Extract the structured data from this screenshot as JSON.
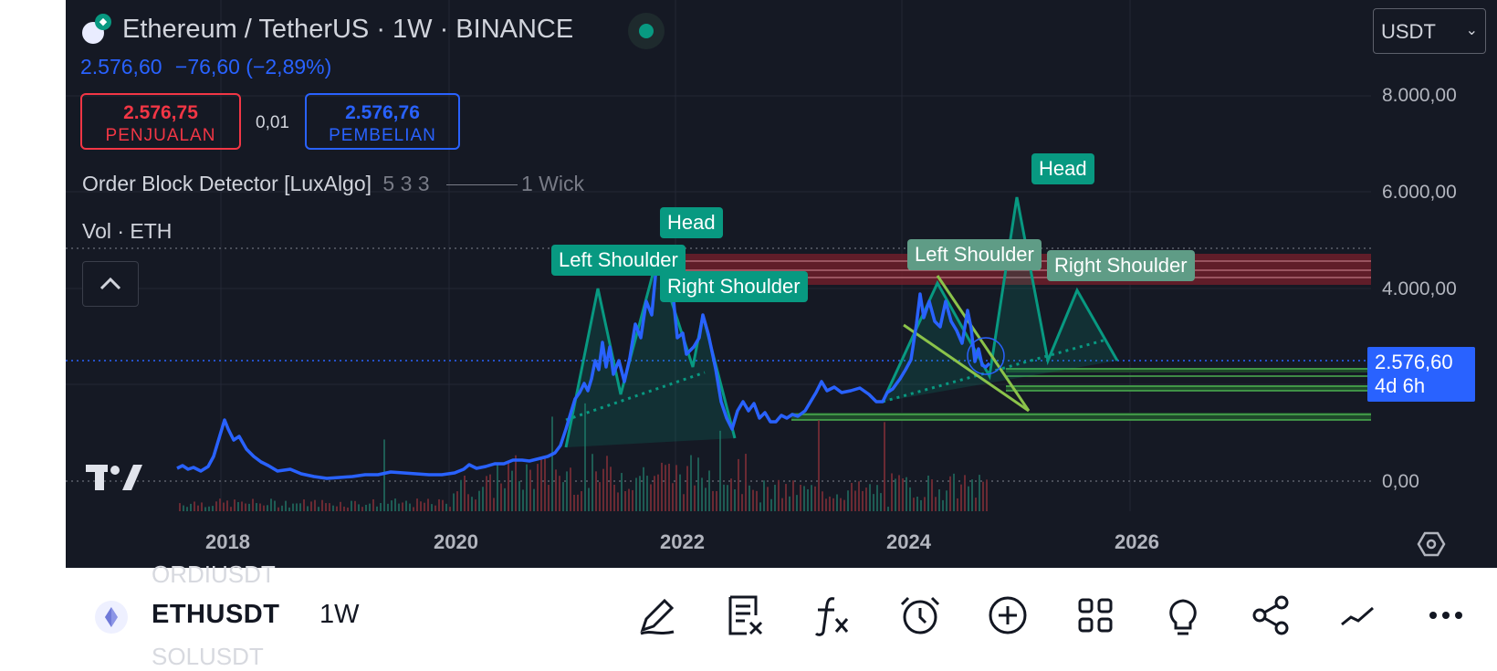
{
  "header": {
    "symbol_title": "Ethereum / TetherUS · 1W · BINANCE",
    "last_price": "2.576,60",
    "change": "−76,60 (−2,89%)"
  },
  "trade": {
    "sell_price": "2.576,75",
    "sell_label": "PENJUALAN",
    "spread": "0,01",
    "buy_price": "2.576,76",
    "buy_label": "PEMBELIAN"
  },
  "indicators": {
    "order_block_name": "Order Block Detector [LuxAlgo]",
    "order_block_params": "5 3 3",
    "order_block_wick": "1 Wick",
    "volume": "Vol · ETH"
  },
  "currency": {
    "selected": "USDT"
  },
  "price_tag": {
    "value": "2.576,60",
    "countdown": "4d 6h"
  },
  "y_axis": {
    "labels": [
      "8.000,00",
      "6.000,00",
      "4.000,00",
      "0,00"
    ]
  },
  "x_axis": {
    "labels": [
      "2018",
      "2020",
      "2022",
      "2024",
      "2026"
    ]
  },
  "patterns": {
    "p1_left": "Left Shoulder",
    "p1_head": "Head",
    "p1_right": "Right Shoulder",
    "p2_left": "Left Shoulder",
    "p2_head": "Head",
    "p2_right": "Right Shoulder"
  },
  "bottom_bar": {
    "symbol": "ETHUSDT",
    "interval": "1W",
    "ghost_above": "ORDIUSDT",
    "ghost_below": "SOLUSDT",
    "tools": [
      "draw-pencil-icon",
      "watchlist-remove-icon",
      "indicators-fx-icon",
      "alert-clock-icon",
      "add-circle-icon",
      "layouts-grid-icon",
      "ideas-bulb-icon",
      "share-icon",
      "chart-type-line-icon",
      "more-dots-icon"
    ]
  },
  "colors": {
    "panel_bg": "#151924",
    "price_line": "#2962ff",
    "pattern_green": "#089981",
    "sell_red": "#f23645",
    "buy_blue": "#2962ff"
  }
}
